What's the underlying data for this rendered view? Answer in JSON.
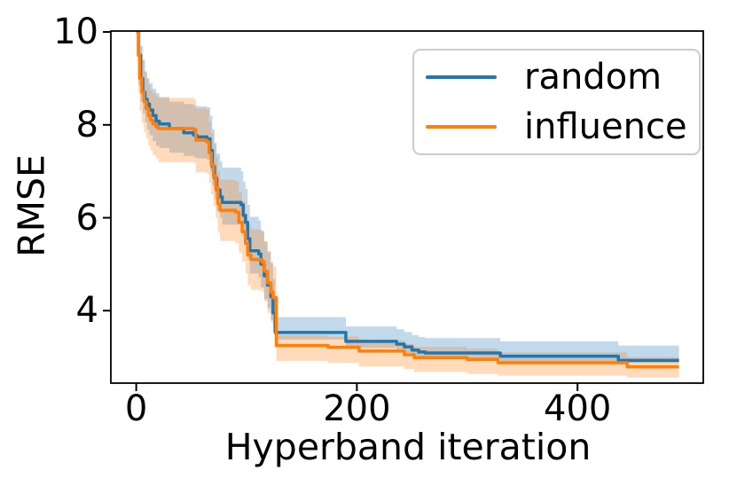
{
  "figure": {
    "background": "#ffffff",
    "text_color": "#000000",
    "spine_color": "#000000"
  },
  "legend": {
    "position": "upper right",
    "border_color": "#cccccc",
    "entries": [
      {
        "label": "random",
        "color": "#1f77b4"
      },
      {
        "label": "influence",
        "color": "#ff7f0e"
      }
    ]
  },
  "chart_data": {
    "type": "line",
    "title": "",
    "xlabel": "Hyperband iteration",
    "ylabel": "RMSE",
    "xlim": [
      -23,
      514
    ],
    "ylim": [
      2.44,
      10.02
    ],
    "x_ticks": [
      0,
      200,
      400
    ],
    "y_ticks": [
      4,
      6,
      8,
      10
    ],
    "grid": false,
    "legend_position": "upper right",
    "step": true,
    "band_opacity": 0.28,
    "series": [
      {
        "name": "random",
        "color": "#1f77b4",
        "points": [
          [
            0,
            10
          ],
          [
            2,
            9.5
          ],
          [
            4,
            9.0
          ],
          [
            6,
            8.7
          ],
          [
            8,
            8.55
          ],
          [
            10,
            8.45
          ],
          [
            12,
            8.32
          ],
          [
            15,
            8.2
          ],
          [
            18,
            8.08
          ],
          [
            21,
            8.02
          ],
          [
            30,
            7.92
          ],
          [
            43,
            7.83
          ],
          [
            52,
            7.78
          ],
          [
            55,
            7.74
          ],
          [
            64,
            7.7
          ],
          [
            67,
            7.45
          ],
          [
            69,
            7.1
          ],
          [
            71,
            6.85
          ],
          [
            73,
            6.6
          ],
          [
            76,
            6.45
          ],
          [
            78,
            6.33
          ],
          [
            95,
            6.28
          ],
          [
            97,
            6.05
          ],
          [
            99,
            5.9
          ],
          [
            101,
            5.55
          ],
          [
            103,
            5.29
          ],
          [
            111,
            5.22
          ],
          [
            113,
            5.0
          ],
          [
            116,
            4.75
          ],
          [
            119,
            4.55
          ],
          [
            122,
            4.3
          ],
          [
            124,
            3.95
          ],
          [
            126,
            3.53
          ],
          [
            190,
            3.34
          ],
          [
            236,
            3.28
          ],
          [
            243,
            3.22
          ],
          [
            250,
            3.15
          ],
          [
            256,
            3.11
          ],
          [
            262,
            3.09
          ],
          [
            330,
            3.02
          ],
          [
            437,
            2.93
          ],
          [
            492,
            2.93
          ]
        ],
        "band": [
          [
            0,
            10,
            10
          ],
          [
            2,
            8.85,
            10
          ],
          [
            4,
            8.5,
            9.7
          ],
          [
            6,
            8.25,
            9.4
          ],
          [
            8,
            8.05,
            9.15
          ],
          [
            10,
            7.9,
            9.0
          ],
          [
            12,
            7.78,
            8.9
          ],
          [
            15,
            7.65,
            8.78
          ],
          [
            18,
            7.55,
            8.68
          ],
          [
            21,
            7.5,
            8.6
          ],
          [
            30,
            7.4,
            8.5
          ],
          [
            43,
            7.33,
            8.45
          ],
          [
            52,
            7.3,
            8.42
          ],
          [
            55,
            7.28,
            8.4
          ],
          [
            64,
            7.25,
            8.38
          ],
          [
            67,
            7.0,
            8.2
          ],
          [
            69,
            6.7,
            7.9
          ],
          [
            71,
            6.4,
            7.62
          ],
          [
            73,
            6.15,
            7.38
          ],
          [
            76,
            6.0,
            7.22
          ],
          [
            78,
            5.85,
            7.08
          ],
          [
            95,
            5.8,
            7.0
          ],
          [
            97,
            5.6,
            6.78
          ],
          [
            99,
            5.45,
            6.62
          ],
          [
            101,
            5.1,
            6.28
          ],
          [
            103,
            4.8,
            6.02
          ],
          [
            111,
            4.72,
            5.94
          ],
          [
            113,
            4.5,
            5.72
          ],
          [
            116,
            4.25,
            5.48
          ],
          [
            119,
            4.05,
            5.28
          ],
          [
            122,
            3.8,
            5.02
          ],
          [
            124,
            3.55,
            4.68
          ],
          [
            126,
            3.38,
            3.86
          ],
          [
            190,
            3.2,
            3.66
          ],
          [
            236,
            3.15,
            3.6
          ],
          [
            243,
            3.09,
            3.54
          ],
          [
            250,
            3.03,
            3.47
          ],
          [
            256,
            2.99,
            3.43
          ],
          [
            262,
            2.97,
            3.41
          ],
          [
            330,
            2.91,
            3.34
          ],
          [
            437,
            2.88,
            3.25
          ],
          [
            492,
            2.88,
            3.25
          ]
        ]
      },
      {
        "name": "influence",
        "color": "#ff7f0e",
        "points": [
          [
            0,
            10
          ],
          [
            2,
            9.5
          ],
          [
            3,
            9.0
          ],
          [
            5,
            8.7
          ],
          [
            7,
            8.5
          ],
          [
            9,
            8.35
          ],
          [
            11,
            8.2
          ],
          [
            13,
            8.1
          ],
          [
            15,
            8.02
          ],
          [
            18,
            7.96
          ],
          [
            20,
            7.92
          ],
          [
            52,
            7.9
          ],
          [
            54,
            7.67
          ],
          [
            64,
            7.63
          ],
          [
            66,
            7.4
          ],
          [
            68,
            7.15
          ],
          [
            70,
            6.9
          ],
          [
            72,
            6.65
          ],
          [
            74,
            6.3
          ],
          [
            76,
            6.16
          ],
          [
            90,
            6.12
          ],
          [
            93,
            5.9
          ],
          [
            96,
            5.7
          ],
          [
            99,
            5.45
          ],
          [
            101,
            5.2
          ],
          [
            104,
            5.1
          ],
          [
            114,
            5.05
          ],
          [
            116,
            4.85
          ],
          [
            119,
            4.6
          ],
          [
            122,
            4.4
          ],
          [
            124,
            4.28
          ],
          [
            127,
            3.25
          ],
          [
            174,
            3.21
          ],
          [
            202,
            3.13
          ],
          [
            243,
            3.05
          ],
          [
            252,
            2.99
          ],
          [
            300,
            2.95
          ],
          [
            328,
            2.88
          ],
          [
            445,
            2.79
          ],
          [
            492,
            2.79
          ]
        ],
        "band": [
          [
            0,
            10,
            10
          ],
          [
            2,
            8.7,
            10
          ],
          [
            3,
            8.3,
            9.7
          ],
          [
            5,
            8.05,
            9.4
          ],
          [
            7,
            7.85,
            9.15
          ],
          [
            9,
            7.7,
            9.0
          ],
          [
            11,
            7.55,
            8.85
          ],
          [
            13,
            7.45,
            8.75
          ],
          [
            15,
            7.35,
            8.68
          ],
          [
            18,
            7.28,
            8.62
          ],
          [
            20,
            7.2,
            8.58
          ],
          [
            52,
            7.18,
            8.55
          ],
          [
            54,
            6.98,
            8.35
          ],
          [
            64,
            6.95,
            8.32
          ],
          [
            66,
            6.75,
            8.08
          ],
          [
            68,
            6.5,
            7.82
          ],
          [
            70,
            6.25,
            7.58
          ],
          [
            72,
            6.0,
            7.32
          ],
          [
            74,
            5.68,
            7.0
          ],
          [
            76,
            5.5,
            6.82
          ],
          [
            90,
            5.45,
            6.78
          ],
          [
            93,
            5.25,
            6.55
          ],
          [
            96,
            5.05,
            6.35
          ],
          [
            99,
            4.8,
            6.1
          ],
          [
            101,
            4.55,
            5.85
          ],
          [
            104,
            4.45,
            5.75
          ],
          [
            114,
            4.4,
            5.7
          ],
          [
            116,
            4.2,
            5.5
          ],
          [
            119,
            3.95,
            5.25
          ],
          [
            122,
            3.75,
            5.05
          ],
          [
            124,
            3.65,
            4.95
          ],
          [
            127,
            2.92,
            3.47
          ],
          [
            174,
            2.88,
            3.44
          ],
          [
            202,
            2.8,
            3.36
          ],
          [
            243,
            2.74,
            3.28
          ],
          [
            252,
            2.68,
            3.22
          ],
          [
            300,
            2.64,
            3.18
          ],
          [
            328,
            2.6,
            3.1
          ],
          [
            445,
            2.56,
            3.0
          ],
          [
            492,
            2.56,
            3.0
          ]
        ]
      }
    ]
  }
}
